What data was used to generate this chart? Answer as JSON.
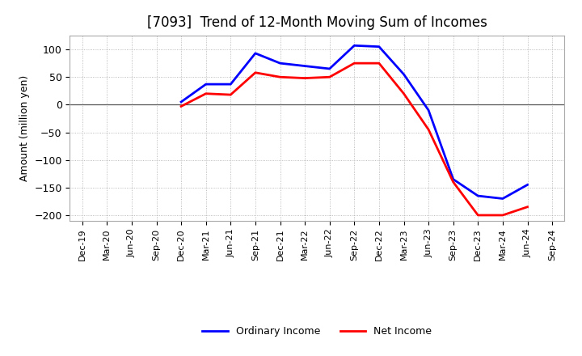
{
  "title": "[7093]  Trend of 12-Month Moving Sum of Incomes",
  "ylabel": "Amount (million yen)",
  "ylim": [
    -210,
    125
  ],
  "yticks": [
    -200,
    -150,
    -100,
    -50,
    0,
    50,
    100
  ],
  "background_color": "#ffffff",
  "plot_background_color": "#ffffff",
  "ordinary_income_color": "#0000ff",
  "net_income_color": "#ff0000",
  "line_width": 2.0,
  "x_labels": [
    "Dec-19",
    "Mar-20",
    "Jun-20",
    "Sep-20",
    "Dec-20",
    "Mar-21",
    "Jun-21",
    "Sep-21",
    "Dec-21",
    "Mar-22",
    "Jun-22",
    "Sep-22",
    "Dec-22",
    "Mar-23",
    "Jun-23",
    "Sep-23",
    "Dec-23",
    "Mar-24",
    "Jun-24",
    "Sep-24"
  ],
  "ordinary_income": [
    null,
    null,
    null,
    null,
    5,
    37,
    37,
    93,
    75,
    70,
    65,
    107,
    105,
    55,
    -10,
    -135,
    -165,
    -170,
    -145,
    null
  ],
  "net_income": [
    null,
    null,
    null,
    null,
    -3,
    20,
    18,
    58,
    50,
    48,
    50,
    75,
    75,
    20,
    -45,
    -140,
    -200,
    -200,
    -185,
    null
  ]
}
